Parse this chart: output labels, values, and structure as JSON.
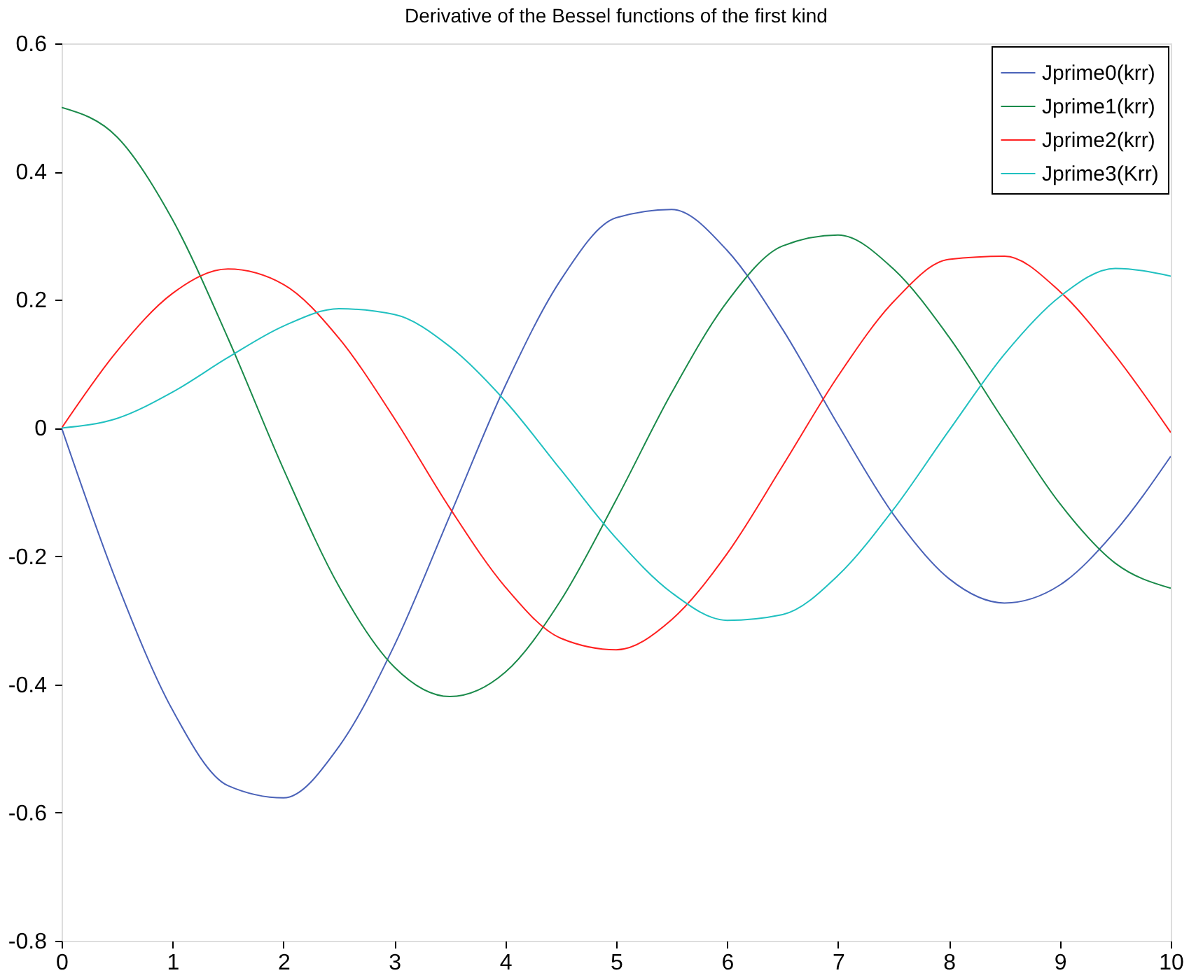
{
  "chart_data": {
    "type": "line",
    "title": "Derivative of the Bessel functions of the first kind",
    "x": [
      0,
      0.5,
      1,
      1.5,
      2,
      2.5,
      3,
      3.5,
      4,
      4.5,
      5,
      5.5,
      6,
      6.5,
      7,
      7.5,
      8,
      8.5,
      9,
      9.5,
      10
    ],
    "series": [
      {
        "name": "Jprime0(krr)",
        "color": "#4a62b8",
        "values": [
          0,
          -0.242,
          -0.44,
          -0.558,
          -0.577,
          -0.497,
          -0.339,
          -0.137,
          0.066,
          0.231,
          0.328,
          0.341,
          0.277,
          0.154,
          0.005,
          -0.135,
          -0.235,
          -0.273,
          -0.245,
          -0.161,
          -0.044
        ]
      },
      {
        "name": "Jprime1(krr)",
        "color": "#1a8a4a",
        "values": [
          0.5,
          0.454,
          0.325,
          0.14,
          -0.064,
          -0.247,
          -0.373,
          -0.419,
          -0.381,
          -0.269,
          -0.112,
          0.055,
          0.197,
          0.284,
          0.301,
          0.248,
          0.142,
          0.01,
          -0.118,
          -0.211,
          -0.25
        ]
      },
      {
        "name": "Jprime2(krr)",
        "color": "#ff2020",
        "values": [
          0,
          0.12,
          0.21,
          0.248,
          0.224,
          0.14,
          0.015,
          -0.125,
          -0.248,
          -0.328,
          -0.346,
          -0.299,
          -0.196,
          -0.059,
          0.081,
          0.197,
          0.263,
          0.268,
          0.213,
          0.113,
          -0.007
        ]
      },
      {
        "name": "Jprime3(Krr)",
        "color": "#20c0c0",
        "values": [
          0,
          0.015,
          0.056,
          0.11,
          0.159,
          0.186,
          0.177,
          0.127,
          0.042,
          -0.065,
          -0.172,
          -0.257,
          -0.3,
          -0.291,
          -0.23,
          -0.127,
          -0.004,
          0.115,
          0.205,
          0.249,
          0.237
        ]
      }
    ],
    "xlim": [
      0,
      10
    ],
    "xticks": [
      0,
      1,
      2,
      3,
      4,
      5,
      6,
      7,
      8,
      9,
      10
    ],
    "ylim": [
      -0.8,
      0.6
    ],
    "yticks": [
      -0.8,
      -0.6,
      -0.4,
      -0.2,
      0,
      0.2,
      0.4,
      0.6
    ],
    "grid": false,
    "legend": "top right",
    "marker": "none",
    "line_style": "solid"
  }
}
